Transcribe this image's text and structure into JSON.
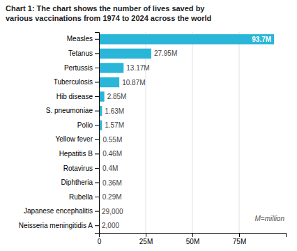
{
  "chart_data": {
    "type": "bar",
    "orientation": "horizontal",
    "title": "Chart 1: The chart shows the number of lives saved by\nvarious vaccinations from 1974 to 2024 across the world",
    "categories": [
      "Measles",
      "Tetanus",
      "Pertussis",
      "Tuberculosis",
      "Hib disease",
      "S. pneumoniae",
      "Polio",
      "Yellow fever",
      "Hepatitis B",
      "Rotavirus",
      "Diphtheria",
      "Rubella",
      "Japanese encephalitis",
      "Neisseria meningitidis A"
    ],
    "values": [
      93700000,
      27950000,
      13170000,
      10870000,
      2850000,
      1630000,
      1570000,
      550000,
      460000,
      400000,
      360000,
      290000,
      29000,
      2000
    ],
    "value_labels": [
      "93.7M",
      "27.95M",
      "13.17M",
      "10.87M",
      "2.85M",
      "1.63M",
      "1.57M",
      "0.55M",
      "0.46M",
      "0.4M",
      "0.36M",
      "0.29M",
      "29,000",
      "2,000"
    ],
    "data_labels": true,
    "color": "#29b6d8",
    "xlim": [
      0,
      100000000
    ],
    "xticks": [
      0,
      {
        "value": 25000000,
        "label": "25M"
      },
      {
        "value": 50000000,
        "label": "50M"
      },
      {
        "value": 75000000,
        "label": "75M"
      }
    ],
    "grid": true,
    "annotations": [
      "M=million"
    ]
  }
}
